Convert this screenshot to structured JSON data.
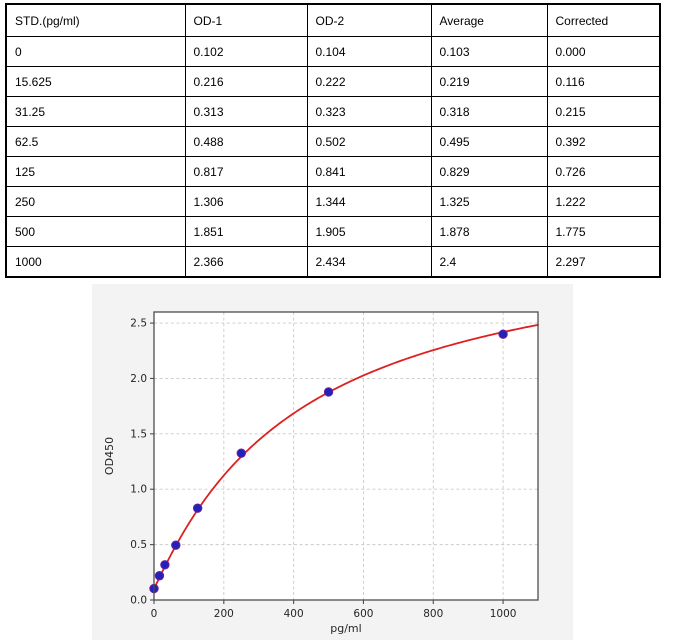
{
  "table": {
    "headers": [
      "STD.(pg/ml)",
      "OD-1",
      "OD-2",
      "Average",
      "Corrected"
    ],
    "rows": [
      [
        "0",
        "0.102",
        "0.104",
        "0.103",
        "0.000"
      ],
      [
        "15.625",
        "0.216",
        "0.222",
        "0.219",
        "0.116"
      ],
      [
        "31.25",
        "0.313",
        "0.323",
        "0.318",
        "0.215"
      ],
      [
        "62.5",
        "0.488",
        "0.502",
        "0.495",
        "0.392"
      ],
      [
        "125",
        "0.817",
        "0.841",
        "0.829",
        "0.726"
      ],
      [
        "250",
        "1.306",
        "1.344",
        "1.325",
        "1.222"
      ],
      [
        "500",
        "1.851",
        "1.905",
        "1.878",
        "1.775"
      ],
      [
        "1000",
        "2.366",
        "2.434",
        "2.4",
        "2.297"
      ]
    ]
  },
  "chart_data": {
    "type": "scatter",
    "title": "",
    "xlabel": "pg/ml",
    "ylabel": "OD450",
    "x": [
      0,
      15.625,
      31.25,
      62.5,
      125,
      250,
      500,
      1000
    ],
    "y": [
      0.103,
      0.219,
      0.318,
      0.495,
      0.829,
      1.325,
      1.878,
      2.4
    ],
    "xlim": [
      0,
      1100
    ],
    "ylim": [
      0,
      2.6
    ],
    "xticks": [
      0,
      200,
      400,
      600,
      800,
      1000
    ],
    "xtick_labels": [
      "0",
      "200",
      "400",
      "600",
      "800",
      "1000"
    ],
    "yticks": [
      0,
      0.5,
      1.0,
      1.5,
      2.0,
      2.5
    ],
    "ytick_labels": [
      "0.0",
      "0.5",
      "1.0",
      "1.5",
      "2.0",
      "2.5"
    ],
    "grid": true,
    "legend": "none",
    "fit_curve": {
      "type": "4PL",
      "a": 0.103,
      "b": 1.05,
      "c": 420,
      "d": 3.35
    },
    "colors": {
      "line": "#dd2020",
      "point": "#2222bb",
      "point_edge": "#6a1fa0",
      "grid": "#c9c9c9",
      "spine": "#4d4d4d",
      "tick_text": "#262626",
      "panel_bg": "#f3f3f3",
      "plot_bg": "#ffffff"
    }
  }
}
